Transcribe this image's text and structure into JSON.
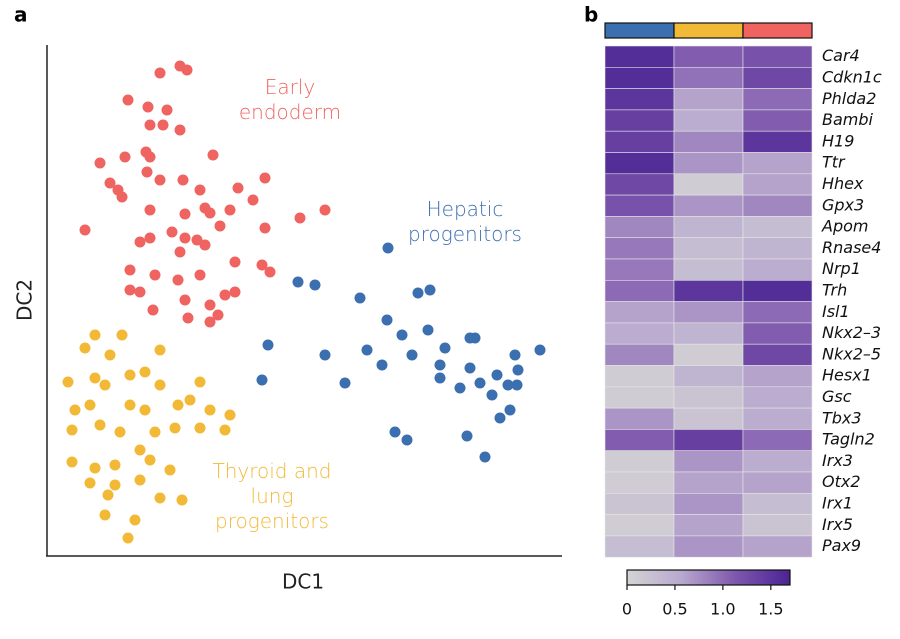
{
  "chart_data": [
    {
      "type": "scatter",
      "panel": "a",
      "xlabel": "DC1",
      "ylabel": "DC2",
      "xlim": [
        0,
        513
      ],
      "ylim": [
        0,
        510
      ],
      "series": [
        {
          "name": "Early endoderm",
          "color": "#ef6461",
          "x": [
            113,
            133,
            140,
            81,
            101,
            120,
            103,
            116,
            133,
            53,
            78,
            99,
            103,
            166,
            63,
            71,
            75,
            100,
            113,
            136,
            153,
            191,
            218,
            206,
            158,
            163,
            183,
            138,
            103,
            253,
            278,
            38,
            125,
            138,
            150,
            173,
            93,
            103,
            218,
            133,
            158,
            215,
            223,
            83,
            108,
            131,
            153,
            188,
            93,
            138,
            163,
            178,
            106,
            141,
            163,
            171,
            83,
            188
          ],
          "values": [
            482,
            489,
            485,
            455,
            448,
            445,
            430,
            430,
            425,
            392,
            398,
            403,
            398,
            400,
            372,
            365,
            358,
            383,
            375,
            375,
            365,
            367,
            377,
            355,
            347,
            342,
            345,
            341,
            345,
            337,
            345,
            325,
            323,
            317,
            315,
            329,
            313,
            317,
            327,
            303,
            310,
            290,
            283,
            285,
            280,
            275,
            280,
            293,
            263,
            255,
            250,
            260,
            245,
            237,
            233,
            240,
            265,
            263
          ]
        },
        {
          "name": "Hepatic progenitors",
          "color": "#3b6fb0",
          "x": [
            341,
            251,
            268,
            313,
            371,
            383,
            340,
            355,
            381,
            423,
            428,
            221,
            278,
            320,
            365,
            398,
            468,
            493,
            215,
            298,
            335,
            393,
            423,
            433,
            450,
            471,
            393,
            413,
            461,
            470,
            445,
            463,
            348,
            360,
            420,
            438,
            453
          ],
          "values": [
            307,
            273,
            270,
            257,
            262,
            265,
            235,
            220,
            225,
            217,
            217,
            210,
            200,
            205,
            200,
            207,
            200,
            205,
            175,
            172,
            190,
            190,
            187,
            172,
            180,
            185,
            177,
            167,
            170,
            170,
            160,
            145,
            123,
            115,
            119,
            98,
            137
          ]
        },
        {
          "name": "Thyroid and lung progenitors",
          "color": "#f2b936",
          "x": [
            48,
            75,
            38,
            63,
            113,
            21,
            48,
            58,
            83,
            98,
            113,
            153,
            28,
            43,
            83,
            98,
            131,
            143,
            163,
            25,
            53,
            73,
            108,
            128,
            153,
            178,
            183,
            93,
            103,
            48,
            68,
            123,
            25,
            43,
            61,
            93,
            113,
            58,
            88,
            135,
            81,
            68
          ],
          "values": [
            220,
            220,
            207,
            200,
            205,
            173,
            177,
            170,
            180,
            183,
            170,
            173,
            145,
            150,
            150,
            145,
            150,
            155,
            145,
            125,
            130,
            123,
            123,
            127,
            127,
            125,
            140,
            105,
            95,
            87,
            90,
            85,
            93,
            72,
            60,
            75,
            57,
            40,
            35,
            55,
            17,
            70
          ]
        }
      ]
    },
    {
      "type": "heatmap",
      "panel": "b",
      "column_colors": [
        "#3b6fb0",
        "#f2b936",
        "#ef6461"
      ],
      "rows": [
        "Car4",
        "Cdkn1c",
        "Phlda2",
        "Bambi",
        "H19",
        "Ttr",
        "Hhex",
        "Gpx3",
        "Apom",
        "Rnase4",
        "Nrp1",
        "Trh",
        "Isl1",
        "Nkx2–3",
        "Nkx2–5",
        "Hesx1",
        "Gsc",
        "Tbx3",
        "Tagln2",
        "Irx3",
        "Otx2",
        "Irx1",
        "Irx5",
        "Pax9"
      ],
      "values": [
        [
          1.6,
          1.1,
          1.2
        ],
        [
          1.6,
          0.95,
          1.3
        ],
        [
          1.5,
          0.6,
          1.0
        ],
        [
          1.4,
          0.5,
          1.1
        ],
        [
          1.4,
          0.8,
          1.5
        ],
        [
          1.6,
          0.7,
          0.6
        ],
        [
          1.3,
          0.1,
          0.6
        ],
        [
          1.2,
          0.7,
          0.8
        ],
        [
          0.8,
          0.4,
          0.3
        ],
        [
          0.9,
          0.3,
          0.4
        ],
        [
          0.9,
          0.3,
          0.5
        ],
        [
          1.0,
          1.5,
          1.6
        ],
        [
          0.6,
          0.7,
          1.0
        ],
        [
          0.5,
          0.4,
          1.1
        ],
        [
          0.8,
          0.1,
          1.3
        ],
        [
          0.1,
          0.4,
          0.6
        ],
        [
          0.1,
          0.2,
          0.5
        ],
        [
          0.7,
          0.2,
          0.5
        ],
        [
          1.1,
          1.4,
          1.0
        ],
        [
          0.1,
          0.7,
          0.5
        ],
        [
          0.1,
          0.6,
          0.6
        ],
        [
          0.2,
          0.7,
          0.3
        ],
        [
          0.1,
          0.6,
          0.2
        ],
        [
          0.3,
          0.7,
          0.6
        ]
      ],
      "colormap": [
        "#d4d4d4",
        "#b8a8ce",
        "#7e57ad",
        "#4a2494"
      ],
      "clim": [
        0,
        1.7
      ],
      "cticks": [
        0,
        0.5,
        {
          "value": 1,
          "label": "1.0"
        },
        1.5
      ]
    }
  ]
}
